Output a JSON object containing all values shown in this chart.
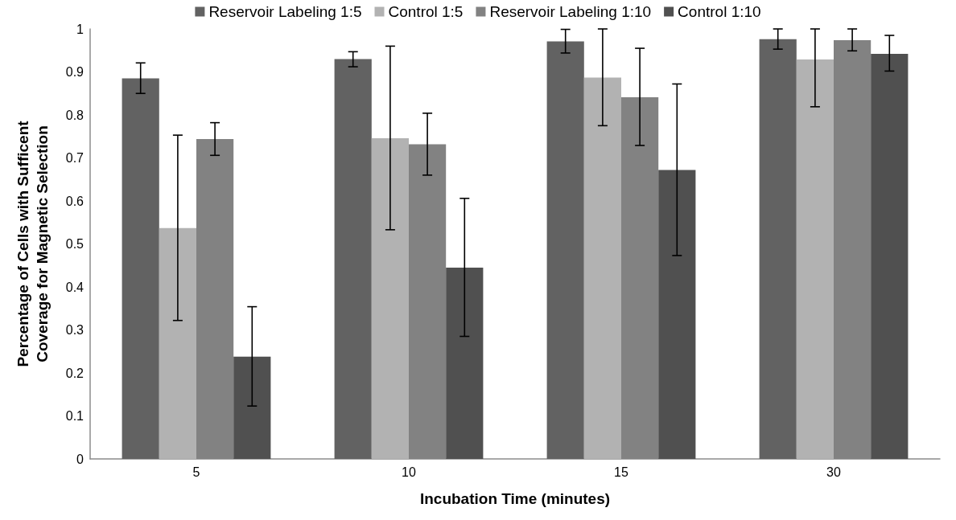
{
  "chart_data": {
    "type": "bar",
    "xlabel": "Incubation Time (minutes)",
    "ylabel": "Percentage of Cells with Sufficent\nCoverage for Magnetic Selection",
    "categories": [
      "5",
      "10",
      "15",
      "30"
    ],
    "series": [
      {
        "name": "Reservoir Labeling 1:5",
        "color": "#626262",
        "values": [
          0.885,
          0.93,
          0.971,
          0.976
        ],
        "errors": [
          [
            0.85,
            0.921
          ],
          [
            0.912,
            0.947
          ],
          [
            0.944,
            0.999
          ],
          [
            0.953,
            1.0
          ]
        ]
      },
      {
        "name": "Control 1:5",
        "color": "#b2b2b2",
        "values": [
          0.537,
          0.746,
          0.887,
          0.929
        ],
        "errors": [
          [
            0.322,
            0.753
          ],
          [
            0.533,
            0.96
          ],
          [
            0.775,
            1.0
          ],
          [
            0.819,
            1.0
          ]
        ]
      },
      {
        "name": "Reservoir Labeling 1:10",
        "color": "#828282",
        "values": [
          0.744,
          0.732,
          0.841,
          0.974
        ],
        "errors": [
          [
            0.706,
            0.782
          ],
          [
            0.66,
            0.804
          ],
          [
            0.729,
            0.955
          ],
          [
            0.949,
            1.0
          ]
        ]
      },
      {
        "name": "Control 1:10",
        "color": "#505050",
        "values": [
          0.238,
          0.445,
          0.672,
          0.942
        ],
        "errors": [
          [
            0.123,
            0.354
          ],
          [
            0.285,
            0.606
          ],
          [
            0.473,
            0.872
          ],
          [
            0.902,
            0.985
          ]
        ]
      }
    ],
    "ylim": [
      0,
      1
    ],
    "yticks": [
      0,
      0.1,
      0.2,
      0.3,
      0.4,
      0.5,
      0.6,
      0.7,
      0.8,
      0.9,
      1
    ],
    "grid": false,
    "legend": "top"
  }
}
